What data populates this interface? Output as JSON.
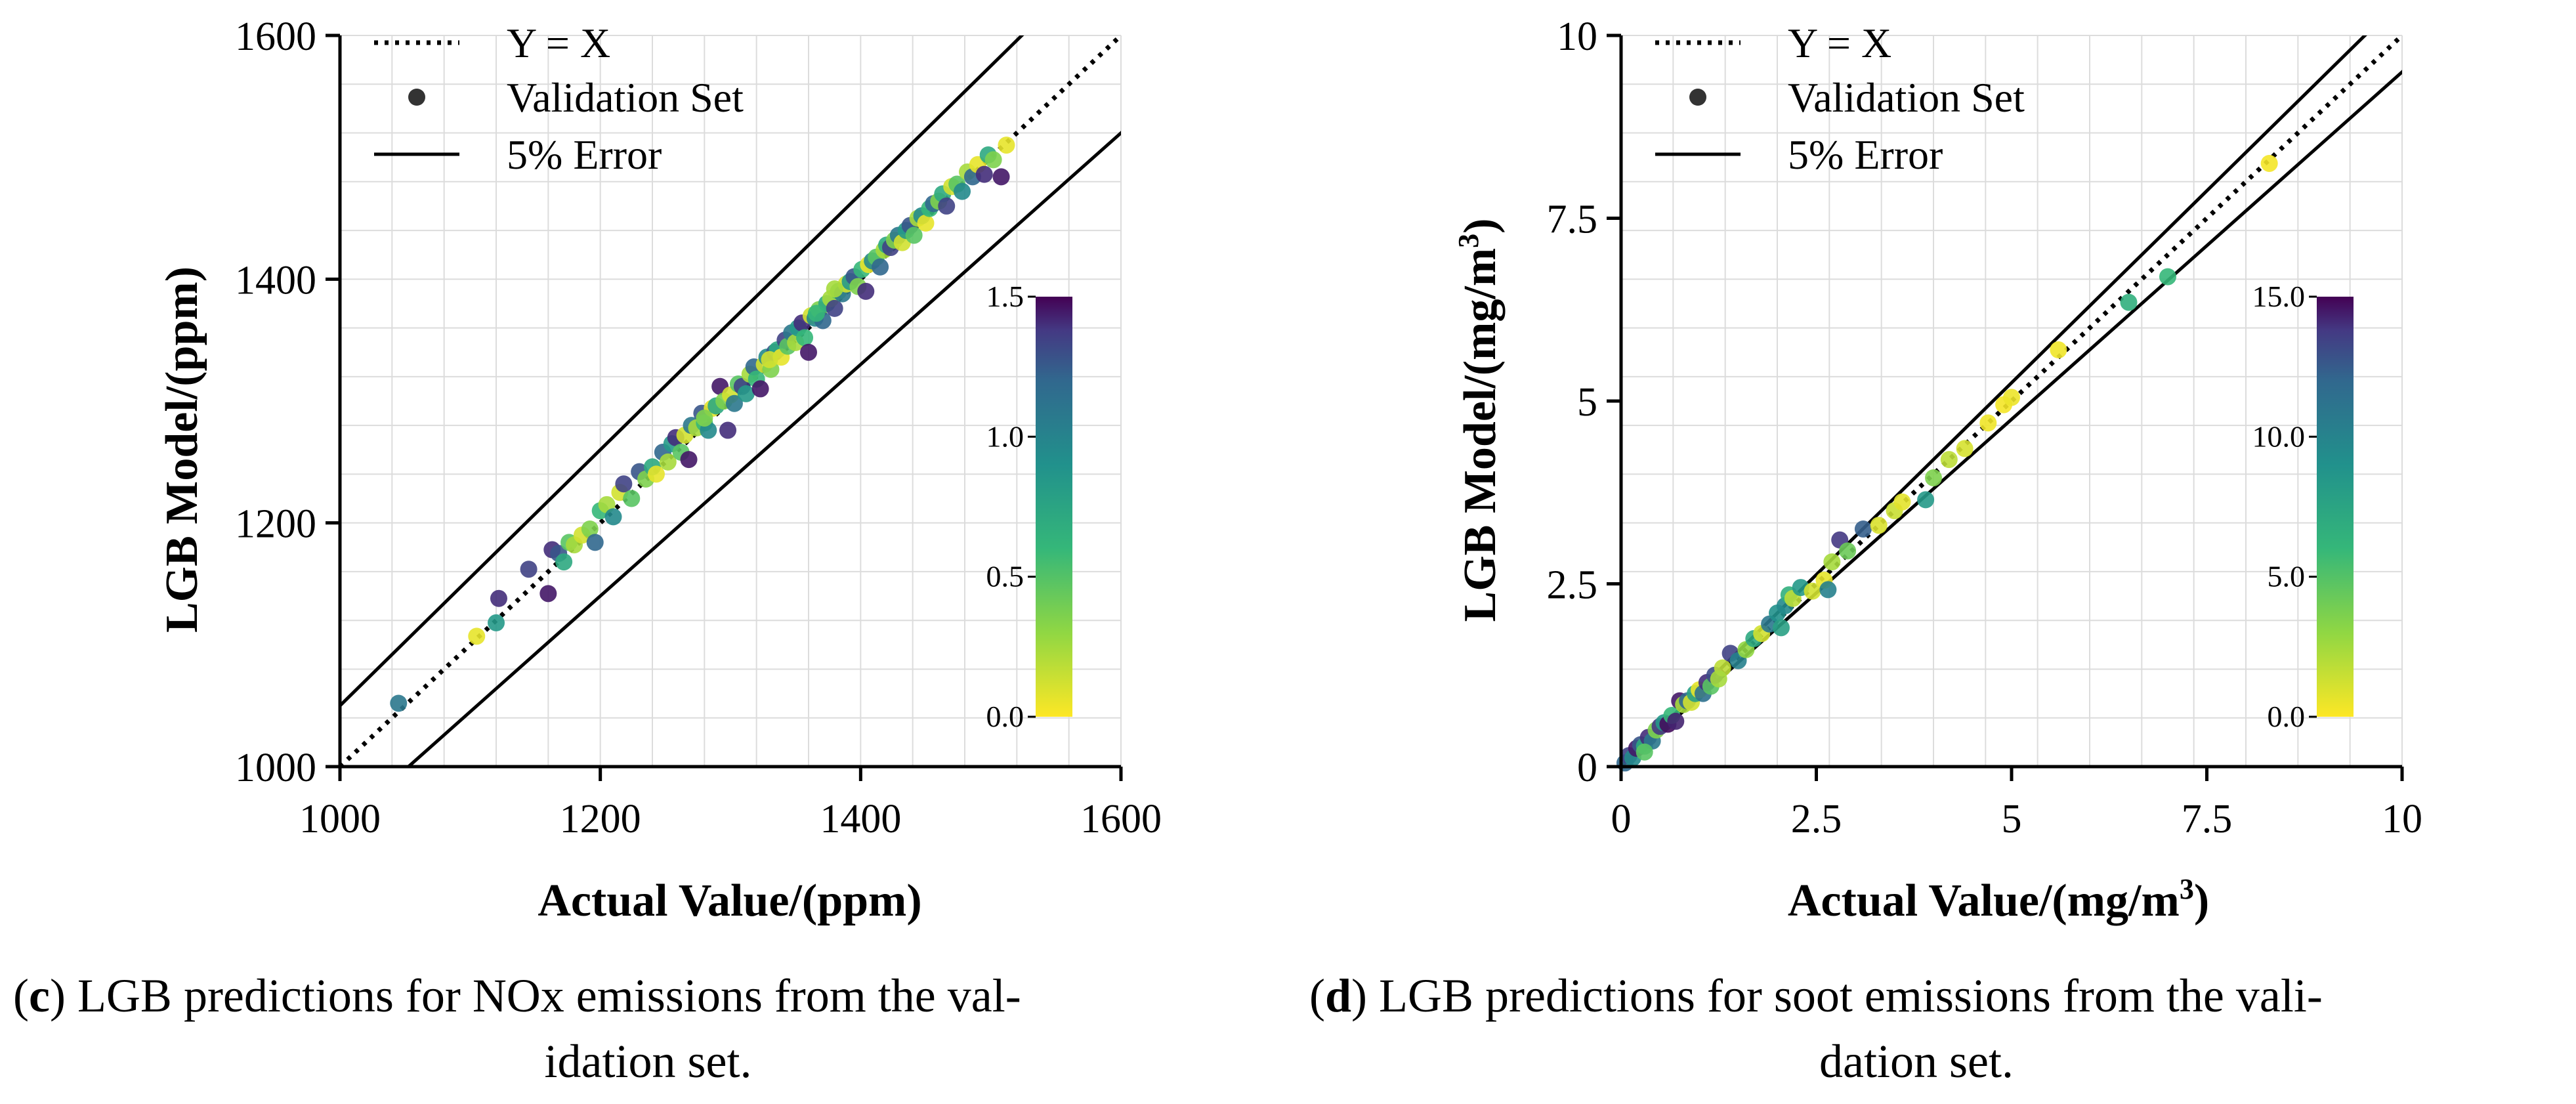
{
  "captions": {
    "c_letter": "c",
    "c_line1": " LGB predictions for NOx emissions from the val-",
    "c_line2": "idation set.",
    "d_letter": "d",
    "d_line1": " LGB predictions for soot emissions from the vali-",
    "d_line2": "dation set."
  },
  "chart_data": [
    {
      "type": "scatter",
      "xlabel": "Actual Value/(ppm)",
      "ylabel": "LGB Model/(ppm)",
      "xlim": [
        1000,
        1600
      ],
      "ylim": [
        1000,
        1600
      ],
      "xticks": [
        "1000",
        "1200",
        "1400",
        "1600"
      ],
      "yticks": [
        "1000",
        "1200",
        "1400",
        "1600"
      ],
      "grid": true,
      "legend_position": "top-left",
      "legend": [
        "Y = X",
        "Validation Set",
        "5% Error"
      ],
      "colorbar": {
        "min": 0.0,
        "max": 1.5,
        "ticks": [
          "0.0",
          "0.5",
          "1.0",
          "1.5"
        ],
        "colormap": "viridis-reversed",
        "placement": "right"
      },
      "reference_lines": {
        "identity": "Y = X",
        "error_band": 0.05
      },
      "points": [
        [
          1045,
          1052,
          0.9
        ],
        [
          1105,
          1107,
          0.05
        ],
        [
          1120,
          1118,
          0.7
        ],
        [
          1122,
          1138,
          1.3
        ],
        [
          1145,
          1162,
          1.2
        ],
        [
          1160,
          1142,
          1.4
        ],
        [
          1163,
          1178,
          1.3
        ],
        [
          1168,
          1175,
          1.1
        ],
        [
          1172,
          1168,
          0.6
        ],
        [
          1176,
          1184,
          0.4
        ],
        [
          1180,
          1182,
          0.2
        ],
        [
          1186,
          1190,
          0.1
        ],
        [
          1192,
          1195,
          0.3
        ],
        [
          1196,
          1184,
          1.0
        ],
        [
          1200,
          1210,
          0.5
        ],
        [
          1205,
          1215,
          0.2
        ],
        [
          1210,
          1205,
          0.8
        ],
        [
          1215,
          1225,
          0.1
        ],
        [
          1218,
          1232,
          1.2
        ],
        [
          1224,
          1220,
          0.4
        ],
        [
          1230,
          1242,
          1.1
        ],
        [
          1235,
          1236,
          0.3
        ],
        [
          1240,
          1246,
          0.6
        ],
        [
          1243,
          1240,
          0.05
        ],
        [
          1248,
          1258,
          1.0
        ],
        [
          1252,
          1250,
          0.2
        ],
        [
          1255,
          1265,
          0.7
        ],
        [
          1258,
          1270,
          1.3
        ],
        [
          1262,
          1258,
          0.4
        ],
        [
          1265,
          1272,
          0.1
        ],
        [
          1268,
          1252,
          1.4
        ],
        [
          1270,
          1280,
          0.9
        ],
        [
          1274,
          1278,
          0.2
        ],
        [
          1278,
          1290,
          1.1
        ],
        [
          1280,
          1282,
          0.5
        ],
        [
          1283,
          1276,
          0.8
        ],
        [
          1286,
          1294,
          0.05
        ],
        [
          1289,
          1296,
          0.6
        ],
        [
          1292,
          1312,
          1.4
        ],
        [
          1295,
          1300,
          0.3
        ],
        [
          1298,
          1276,
          1.3
        ],
        [
          1300,
          1305,
          0.1
        ],
        [
          1303,
          1298,
          0.9
        ],
        [
          1306,
          1314,
          0.4
        ],
        [
          1309,
          1312,
          1.2
        ],
        [
          1312,
          1306,
          0.7
        ],
        [
          1315,
          1322,
          0.2
        ],
        [
          1318,
          1328,
          1.0
        ],
        [
          1320,
          1318,
          0.5
        ],
        [
          1323,
          1310,
          1.4
        ],
        [
          1326,
          1330,
          0.1
        ],
        [
          1328,
          1336,
          0.8
        ],
        [
          1331,
          1326,
          0.3
        ],
        [
          1334,
          1340,
          1.1
        ],
        [
          1336,
          1342,
          0.6
        ],
        [
          1339,
          1336,
          0.05
        ],
        [
          1342,
          1350,
          1.2
        ],
        [
          1344,
          1345,
          0.4
        ],
        [
          1347,
          1356,
          0.9
        ],
        [
          1350,
          1348,
          0.2
        ],
        [
          1352,
          1360,
          0.7
        ],
        [
          1355,
          1364,
          1.3
        ],
        [
          1357,
          1352,
          0.5
        ],
        [
          1360,
          1340,
          1.4
        ],
        [
          1362,
          1370,
          0.1
        ],
        [
          1365,
          1368,
          0.8
        ],
        [
          1368,
          1375,
          0.3
        ],
        [
          1371,
          1366,
          1.0
        ],
        [
          1374,
          1380,
          0.6
        ],
        [
          1377,
          1384,
          0.2
        ],
        [
          1380,
          1376,
          1.2
        ],
        [
          1383,
          1390,
          0.4
        ],
        [
          1386,
          1388,
          0.9
        ],
        [
          1389,
          1396,
          0.1
        ],
        [
          1392,
          1398,
          0.7
        ],
        [
          1395,
          1402,
          1.1
        ],
        [
          1398,
          1394,
          0.3
        ],
        [
          1401,
          1408,
          0.5
        ],
        [
          1404,
          1390,
          1.3
        ],
        [
          1406,
          1412,
          0.05
        ],
        [
          1409,
          1415,
          0.8
        ],
        [
          1412,
          1418,
          0.4
        ],
        [
          1415,
          1410,
          1.0
        ],
        [
          1418,
          1424,
          0.2
        ],
        [
          1420,
          1428,
          0.6
        ],
        [
          1423,
          1426,
          1.2
        ],
        [
          1426,
          1432,
          0.3
        ],
        [
          1429,
          1436,
          0.9
        ],
        [
          1432,
          1430,
          0.1
        ],
        [
          1435,
          1440,
          0.7
        ],
        [
          1438,
          1444,
          1.1
        ],
        [
          1441,
          1436,
          0.4
        ],
        [
          1444,
          1450,
          0.2
        ],
        [
          1447,
          1452,
          0.8
        ],
        [
          1450,
          1446,
          0.05
        ],
        [
          1453,
          1458,
          0.5
        ],
        [
          1456,
          1462,
          1.0
        ],
        [
          1460,
          1464,
          0.3
        ],
        [
          1463,
          1470,
          0.6
        ],
        [
          1466,
          1460,
          1.2
        ],
        [
          1470,
          1476,
          0.1
        ],
        [
          1474,
          1478,
          0.4
        ],
        [
          1478,
          1472,
          0.8
        ],
        [
          1482,
          1488,
          0.2
        ],
        [
          1486,
          1484,
          1.0
        ],
        [
          1490,
          1494,
          0.05
        ],
        [
          1495,
          1486,
          1.3
        ],
        [
          1498,
          1502,
          0.6
        ],
        [
          1502,
          1498,
          0.3
        ],
        [
          1508,
          1484,
          1.4
        ],
        [
          1512,
          1510,
          0.05
        ],
        [
          1380,
          1392,
          0.2
        ],
        [
          1366,
          1372,
          0.5
        ],
        [
          1330,
          1334,
          0.1
        ],
        [
          1280,
          1286,
          0.3
        ]
      ]
    },
    {
      "type": "scatter",
      "xlabel": "Actual Value/(mg/m3)",
      "ylabel": "LGB Model/(mg/m3)",
      "xlim": [
        0,
        10
      ],
      "ylim": [
        0,
        10
      ],
      "xticks": [
        "0",
        "2.5",
        "5",
        "7.5",
        "10"
      ],
      "yticks": [
        "0",
        "2.5",
        "5",
        "7.5",
        "10"
      ],
      "grid": true,
      "legend_position": "top-left",
      "legend": [
        "Y = X",
        "Validation Set",
        "5% Error"
      ],
      "colorbar": {
        "min": 0.0,
        "max": 15.0,
        "ticks": [
          "0.0",
          "5.0",
          "10.0",
          "15.0"
        ],
        "colormap": "viridis-reversed",
        "placement": "right"
      },
      "reference_lines": {
        "identity": "Y = X",
        "error_band": 0.05
      },
      "points": [
        [
          0.05,
          0.05,
          10.0
        ],
        [
          0.1,
          0.15,
          12.0
        ],
        [
          0.15,
          0.12,
          8.0
        ],
        [
          0.2,
          0.25,
          14.0
        ],
        [
          0.25,
          0.3,
          11.0
        ],
        [
          0.3,
          0.28,
          6.0
        ],
        [
          0.35,
          0.4,
          13.0
        ],
        [
          0.4,
          0.35,
          9.0
        ],
        [
          0.45,
          0.5,
          3.0
        ],
        [
          0.5,
          0.55,
          12.5
        ],
        [
          0.55,
          0.6,
          7.0
        ],
        [
          0.6,
          0.58,
          14.5
        ],
        [
          0.65,
          0.7,
          5.0
        ],
        [
          0.7,
          0.62,
          13.5
        ],
        [
          0.75,
          0.9,
          14.0
        ],
        [
          0.8,
          0.85,
          2.0
        ],
        [
          0.85,
          0.9,
          10.0
        ],
        [
          0.9,
          0.88,
          1.0
        ],
        [
          0.95,
          1.0,
          6.5
        ],
        [
          1.0,
          1.05,
          0.5
        ],
        [
          1.05,
          1.0,
          9.5
        ],
        [
          1.1,
          1.15,
          13.0
        ],
        [
          1.15,
          1.1,
          4.0
        ],
        [
          1.2,
          1.25,
          11.5
        ],
        [
          1.3,
          1.35,
          1.5
        ],
        [
          1.4,
          1.55,
          12.0
        ],
        [
          1.5,
          1.45,
          8.5
        ],
        [
          1.6,
          1.6,
          2.5
        ],
        [
          1.7,
          1.75,
          6.0
        ],
        [
          1.8,
          1.82,
          1.0
        ],
        [
          1.9,
          1.95,
          9.0
        ],
        [
          2.0,
          2.1,
          7.5
        ],
        [
          2.05,
          1.9,
          6.5
        ],
        [
          2.1,
          2.2,
          8.0
        ],
        [
          2.15,
          2.35,
          5.5
        ],
        [
          2.2,
          2.3,
          1.5
        ],
        [
          2.3,
          2.45,
          7.0
        ],
        [
          2.45,
          2.4,
          1.0
        ],
        [
          2.6,
          2.55,
          0.5
        ],
        [
          2.65,
          2.42,
          8.5
        ],
        [
          2.7,
          2.8,
          2.0
        ],
        [
          2.8,
          3.1,
          12.5
        ],
        [
          2.9,
          2.95,
          3.5
        ],
        [
          3.1,
          3.25,
          10.5
        ],
        [
          3.3,
          3.3,
          0.8
        ],
        [
          3.5,
          3.5,
          1.2
        ],
        [
          3.6,
          3.62,
          0.6
        ],
        [
          3.9,
          3.65,
          7.0
        ],
        [
          4.0,
          3.95,
          3.0
        ],
        [
          4.2,
          4.2,
          1.5
        ],
        [
          4.4,
          4.35,
          0.9
        ],
        [
          4.7,
          4.7,
          0.3
        ],
        [
          4.9,
          4.95,
          0.2
        ],
        [
          5.0,
          5.05,
          0.4
        ],
        [
          5.6,
          5.7,
          0.3
        ],
        [
          6.5,
          6.35,
          5.5
        ],
        [
          7.0,
          6.7,
          5.0
        ],
        [
          8.3,
          8.25,
          0.2
        ],
        [
          0.3,
          0.2,
          4.0
        ],
        [
          1.25,
          1.2,
          2.0
        ]
      ]
    }
  ]
}
